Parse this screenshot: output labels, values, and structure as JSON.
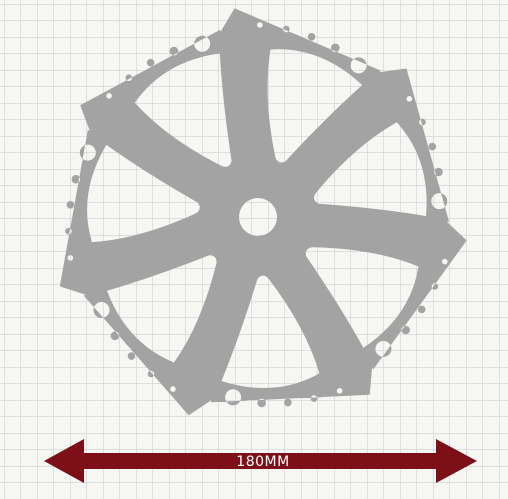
{
  "diagram": {
    "dimension_label": "180MM",
    "colors": {
      "paper": "#f6f6f2",
      "grid": "#c4cbd3",
      "rotor": "#a3a3a3",
      "arrow": "#7d0f18",
      "label": "#ffffff"
    }
  }
}
